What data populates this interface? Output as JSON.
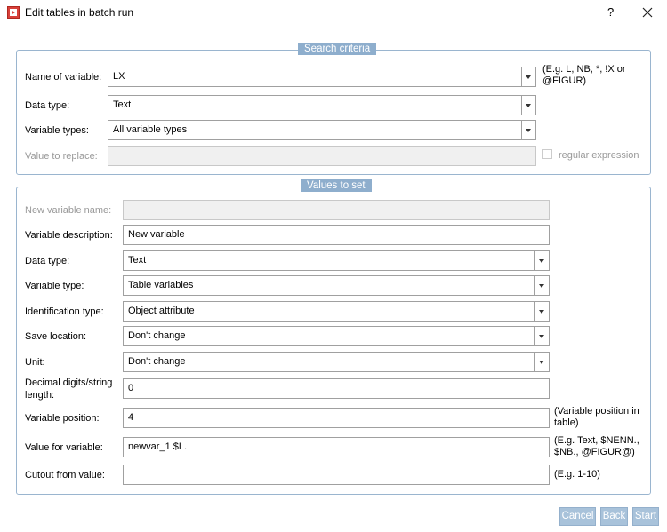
{
  "window": {
    "title": "Edit tables in batch run",
    "help": "?"
  },
  "search": {
    "legend": "Search criteria",
    "rows": [
      {
        "label": "Name of variable:",
        "value": "LX",
        "hint": "(E.g. L, NB, *, !X or @FIGUR)"
      },
      {
        "label": "Data type:",
        "value": "Text"
      },
      {
        "label": "Variable types:",
        "value": "All variable types"
      },
      {
        "label": "Value to replace:",
        "option": "regular expression"
      }
    ]
  },
  "values": {
    "legend": "Values to set",
    "rows": [
      {
        "label": "New variable name:"
      },
      {
        "label": "Variable description:",
        "value": "New variable"
      },
      {
        "label": "Data type:",
        "value": "Text"
      },
      {
        "label": "Variable type:",
        "value": "Table variables"
      },
      {
        "label": "Identification type:",
        "value": "Object attribute"
      },
      {
        "label": "Save location:",
        "value": "Don't change"
      },
      {
        "label": "Unit:",
        "value": "Don't change"
      },
      {
        "label": "Decimal digits/string length:",
        "value": "0"
      },
      {
        "label": "Variable position:",
        "value": "4",
        "hint": "(Variable position in table)"
      },
      {
        "label": "Value for variable:",
        "value": "newvar_1 $L.",
        "hint": "(E.g. Text, $NENN., $NB., @FIGUR@)"
      },
      {
        "label": "Cutout from value:",
        "hint": "(E.g. 1-10)"
      }
    ]
  },
  "buttons": [
    "Cancel",
    "Back",
    "Start"
  ]
}
